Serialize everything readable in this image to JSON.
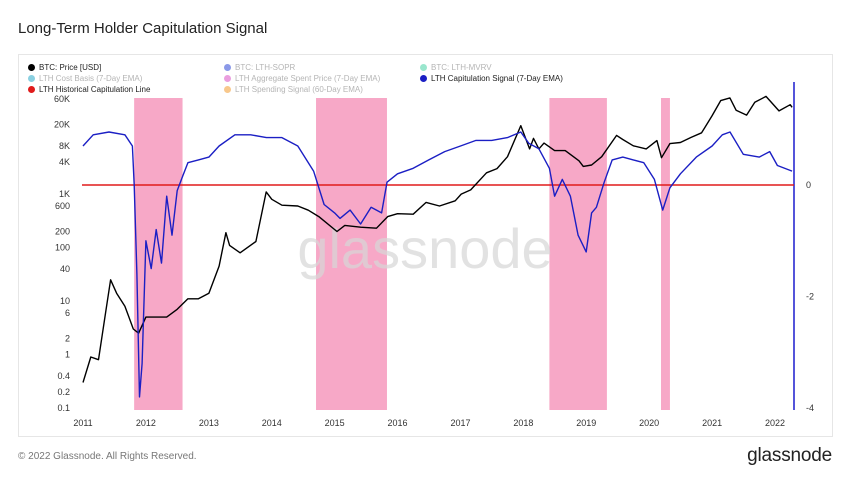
{
  "title": "Long-Term Holder Capitulation Signal",
  "footer": "© 2022 Glassnode. All Rights Reserved.",
  "brand": "glassnode",
  "watermark": "glassnode",
  "legend": [
    {
      "label": "BTC: Price [USD]",
      "color": "#000000",
      "active": true
    },
    {
      "label": "BTC: LTH-SOPR",
      "color": "#2b46d6",
      "active": false
    },
    {
      "label": "BTC: LTH-MVRV",
      "color": "#45d1a4",
      "active": false
    },
    {
      "label": "LTH Cost Basis (7-Day EMA)",
      "color": "#2aa9c8",
      "active": false
    },
    {
      "label": "LTH Aggregate Spent Price (7-Day EMA)",
      "color": "#d94fc3",
      "active": false
    },
    {
      "label": "LTH Capitulation Signal (7-Day EMA)",
      "color": "#1b1fc4",
      "active": true
    },
    {
      "label": "LTH Historical Capitulation Line",
      "color": "#e01b1b",
      "active": true
    },
    {
      "label": "LTH Spending Signal (60-Day EMA)",
      "color": "#f29a2e",
      "active": false
    }
  ],
  "chart_data": {
    "type": "line",
    "x_ticks": [
      "2011",
      "2012",
      "2013",
      "2014",
      "2015",
      "2016",
      "2017",
      "2018",
      "2019",
      "2020",
      "2021",
      "2022"
    ],
    "y_left": {
      "scale": "log",
      "ticks": [
        "0.1",
        "0.2",
        "0.4",
        "1",
        "2",
        "6",
        "10",
        "40",
        "100",
        "200",
        "600",
        "1K",
        "4K",
        "8K",
        "20K",
        "60K"
      ],
      "range": [
        0.1,
        60000
      ]
    },
    "y_right": {
      "scale": "linear",
      "ticks": [
        "0",
        "-2",
        "-4"
      ],
      "range": [
        -4,
        0.6
      ]
    },
    "shaded_periods": [
      {
        "start": "2011-10-25",
        "end": "2012-08-01"
      },
      {
        "start": "2014-09-15",
        "end": "2015-11-01"
      },
      {
        "start": "2018-06-01",
        "end": "2019-05-01"
      },
      {
        "start": "2020-03-10",
        "end": "2020-05-01"
      }
    ],
    "series": [
      {
        "name": "BTC: Price [USD]",
        "axis": "left",
        "color": "#000000",
        "points": [
          [
            "2011-01-01",
            0.3
          ],
          [
            "2011-02-15",
            0.9
          ],
          [
            "2011-04-01",
            0.8
          ],
          [
            "2011-05-15",
            7
          ],
          [
            "2011-06-10",
            25
          ],
          [
            "2011-07-15",
            14
          ],
          [
            "2011-09-01",
            8
          ],
          [
            "2011-10-20",
            3
          ],
          [
            "2011-11-20",
            2.5
          ],
          [
            "2012-01-01",
            5
          ],
          [
            "2012-03-01",
            5
          ],
          [
            "2012-05-01",
            5
          ],
          [
            "2012-07-01",
            7
          ],
          [
            "2012-09-01",
            11
          ],
          [
            "2012-11-01",
            11
          ],
          [
            "2013-01-01",
            14
          ],
          [
            "2013-03-01",
            45
          ],
          [
            "2013-04-10",
            190
          ],
          [
            "2013-05-01",
            110
          ],
          [
            "2013-07-01",
            80
          ],
          [
            "2013-10-01",
            130
          ],
          [
            "2013-11-30",
            1100
          ],
          [
            "2014-01-01",
            800
          ],
          [
            "2014-03-01",
            620
          ],
          [
            "2014-06-01",
            600
          ],
          [
            "2014-08-01",
            500
          ],
          [
            "2014-10-01",
            380
          ],
          [
            "2015-01-15",
            200
          ],
          [
            "2015-03-01",
            260
          ],
          [
            "2015-06-01",
            240
          ],
          [
            "2015-09-01",
            230
          ],
          [
            "2015-11-05",
            380
          ],
          [
            "2016-01-01",
            430
          ],
          [
            "2016-04-01",
            420
          ],
          [
            "2016-06-15",
            700
          ],
          [
            "2016-09-01",
            600
          ],
          [
            "2016-12-01",
            750
          ],
          [
            "2017-01-05",
            1000
          ],
          [
            "2017-03-01",
            1200
          ],
          [
            "2017-06-01",
            2500
          ],
          [
            "2017-08-01",
            3000
          ],
          [
            "2017-10-01",
            5000
          ],
          [
            "2017-12-17",
            19000
          ],
          [
            "2018-02-06",
            7000
          ],
          [
            "2018-03-01",
            11000
          ],
          [
            "2018-04-01",
            7000
          ],
          [
            "2018-05-01",
            9000
          ],
          [
            "2018-07-01",
            6500
          ],
          [
            "2018-09-01",
            6500
          ],
          [
            "2018-11-20",
            4200
          ],
          [
            "2018-12-15",
            3300
          ],
          [
            "2019-02-01",
            3500
          ],
          [
            "2019-04-01",
            5000
          ],
          [
            "2019-06-26",
            12500
          ],
          [
            "2019-08-01",
            10500
          ],
          [
            "2019-10-01",
            8000
          ],
          [
            "2019-12-15",
            7000
          ],
          [
            "2020-02-15",
            10000
          ],
          [
            "2020-03-13",
            4800
          ],
          [
            "2020-05-01",
            8800
          ],
          [
            "2020-07-01",
            9200
          ],
          [
            "2020-09-01",
            11500
          ],
          [
            "2020-11-01",
            14000
          ],
          [
            "2020-12-31",
            29000
          ],
          [
            "2021-02-20",
            56000
          ],
          [
            "2021-04-14",
            63000
          ],
          [
            "2021-05-20",
            37000
          ],
          [
            "2021-07-20",
            30000
          ],
          [
            "2021-09-06",
            52000
          ],
          [
            "2021-11-10",
            67000
          ],
          [
            "2022-01-24",
            36000
          ],
          [
            "2022-03-30",
            47000
          ],
          [
            "2022-04-10",
            42000
          ]
        ]
      },
      {
        "name": "LTH Capitulation Signal (7-Day EMA)",
        "axis": "right",
        "color": "#1b1fc4",
        "points": [
          [
            "2011-01-01",
            0.7
          ],
          [
            "2011-03-01",
            0.9
          ],
          [
            "2011-06-01",
            0.95
          ],
          [
            "2011-09-01",
            0.9
          ],
          [
            "2011-10-15",
            0.7
          ],
          [
            "2011-10-25",
            0.0
          ],
          [
            "2011-11-10",
            -1.6
          ],
          [
            "2011-11-25",
            -3.8
          ],
          [
            "2011-12-10",
            -3.2
          ],
          [
            "2012-01-01",
            -1.0
          ],
          [
            "2012-02-01",
            -1.5
          ],
          [
            "2012-03-01",
            -0.8
          ],
          [
            "2012-04-01",
            -1.4
          ],
          [
            "2012-05-01",
            -0.2
          ],
          [
            "2012-06-01",
            -0.9
          ],
          [
            "2012-07-01",
            -0.1
          ],
          [
            "2012-08-01",
            0.15
          ],
          [
            "2012-09-01",
            0.4
          ],
          [
            "2012-11-01",
            0.45
          ],
          [
            "2013-01-01",
            0.5
          ],
          [
            "2013-03-01",
            0.7
          ],
          [
            "2013-06-01",
            0.9
          ],
          [
            "2013-09-01",
            0.9
          ],
          [
            "2013-12-01",
            0.85
          ],
          [
            "2014-03-01",
            0.85
          ],
          [
            "2014-06-01",
            0.7
          ],
          [
            "2014-09-01",
            0.25
          ],
          [
            "2014-11-01",
            -0.35
          ],
          [
            "2015-01-01",
            -0.5
          ],
          [
            "2015-02-01",
            -0.6
          ],
          [
            "2015-04-01",
            -0.45
          ],
          [
            "2015-06-01",
            -0.7
          ],
          [
            "2015-08-01",
            -0.4
          ],
          [
            "2015-10-01",
            -0.5
          ],
          [
            "2015-11-01",
            0.05
          ],
          [
            "2016-01-01",
            0.2
          ],
          [
            "2016-04-01",
            0.3
          ],
          [
            "2016-07-01",
            0.45
          ],
          [
            "2016-10-01",
            0.6
          ],
          [
            "2017-01-01",
            0.7
          ],
          [
            "2017-04-01",
            0.8
          ],
          [
            "2017-07-01",
            0.8
          ],
          [
            "2017-10-01",
            0.85
          ],
          [
            "2017-12-17",
            0.95
          ],
          [
            "2018-02-01",
            0.75
          ],
          [
            "2018-04-01",
            0.65
          ],
          [
            "2018-06-01",
            0.3
          ],
          [
            "2018-07-01",
            -0.2
          ],
          [
            "2018-08-15",
            0.1
          ],
          [
            "2018-10-01",
            -0.2
          ],
          [
            "2018-11-15",
            -0.9
          ],
          [
            "2019-01-01",
            -1.2
          ],
          [
            "2019-02-01",
            -0.5
          ],
          [
            "2019-03-01",
            -0.4
          ],
          [
            "2019-04-15",
            0.05
          ],
          [
            "2019-06-01",
            0.45
          ],
          [
            "2019-08-01",
            0.5
          ],
          [
            "2019-10-01",
            0.45
          ],
          [
            "2019-12-01",
            0.4
          ],
          [
            "2020-02-01",
            0.1
          ],
          [
            "2020-03-20",
            -0.45
          ],
          [
            "2020-05-01",
            -0.05
          ],
          [
            "2020-07-01",
            0.2
          ],
          [
            "2020-10-01",
            0.5
          ],
          [
            "2021-01-01",
            0.7
          ],
          [
            "2021-03-01",
            0.9
          ],
          [
            "2021-04-15",
            0.95
          ],
          [
            "2021-07-01",
            0.55
          ],
          [
            "2021-10-01",
            0.5
          ],
          [
            "2021-12-01",
            0.6
          ],
          [
            "2022-01-15",
            0.35
          ],
          [
            "2022-04-10",
            0.25
          ]
        ]
      },
      {
        "name": "LTH Historical Capitulation Line",
        "axis": "right",
        "color": "#e01b1b",
        "constant": 0
      }
    ]
  }
}
